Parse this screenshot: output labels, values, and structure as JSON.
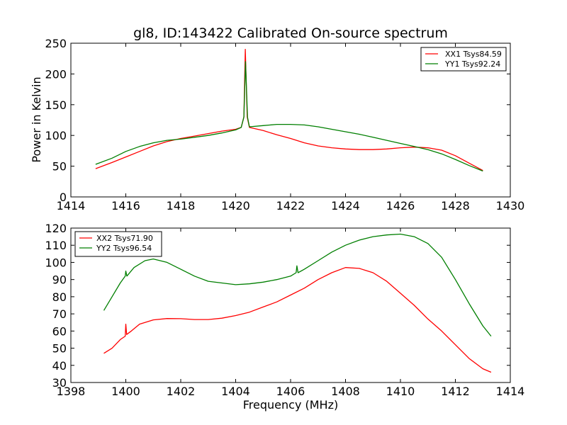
{
  "chart_data": [
    {
      "type": "line",
      "title": "gl8, ID:143422 Calibrated On-source spectrum",
      "xlabel": "",
      "ylabel": "Power in Kelvin",
      "xlim": [
        1414,
        1430
      ],
      "ylim": [
        0,
        250
      ],
      "xticks": [
        "1414",
        "1416",
        "1418",
        "1420",
        "1422",
        "1424",
        "1426",
        "1428",
        "1430"
      ],
      "yticks": [
        "0",
        "50",
        "100",
        "150",
        "200",
        "250"
      ],
      "legend_position": "top-right",
      "series": [
        {
          "name": "XX1 Tsys84.59",
          "color": "#ff0000",
          "points": [
            [
              1414.9,
              46
            ],
            [
              1415.5,
              56
            ],
            [
              1416,
              65
            ],
            [
              1416.5,
              74
            ],
            [
              1417,
              83
            ],
            [
              1417.5,
              90
            ],
            [
              1418,
              95
            ],
            [
              1418.5,
              99
            ],
            [
              1419,
              103
            ],
            [
              1419.5,
              107
            ],
            [
              1420,
              110
            ],
            [
              1420.2,
              113
            ],
            [
              1420.3,
              130
            ],
            [
              1420.35,
              240
            ],
            [
              1420.42,
              130
            ],
            [
              1420.5,
              113
            ],
            [
              1421,
              108
            ],
            [
              1421.5,
              101
            ],
            [
              1422,
              95
            ],
            [
              1422.5,
              88
            ],
            [
              1423,
              83
            ],
            [
              1423.5,
              80
            ],
            [
              1424,
              78
            ],
            [
              1424.5,
              77
            ],
            [
              1425,
              77
            ],
            [
              1425.5,
              78
            ],
            [
              1426,
              80
            ],
            [
              1426.5,
              81
            ],
            [
              1427,
              80
            ],
            [
              1427.5,
              76
            ],
            [
              1428,
              67
            ],
            [
              1428.5,
              55
            ],
            [
              1429,
              43
            ]
          ]
        },
        {
          "name": "YY1 Tsys92.24",
          "color": "#007f00",
          "points": [
            [
              1414.9,
              53
            ],
            [
              1415.5,
              63
            ],
            [
              1416,
              74
            ],
            [
              1416.5,
              82
            ],
            [
              1417,
              88
            ],
            [
              1417.5,
              92
            ],
            [
              1418,
              94
            ],
            [
              1418.5,
              97
            ],
            [
              1419,
              100
            ],
            [
              1419.5,
              104
            ],
            [
              1420,
              109
            ],
            [
              1420.2,
              113
            ],
            [
              1420.3,
              130
            ],
            [
              1420.36,
              220
            ],
            [
              1420.43,
              130
            ],
            [
              1420.5,
              114
            ],
            [
              1421,
              116
            ],
            [
              1421.5,
              118
            ],
            [
              1422,
              118
            ],
            [
              1422.5,
              117
            ],
            [
              1423,
              114
            ],
            [
              1423.5,
              110
            ],
            [
              1424,
              106
            ],
            [
              1424.5,
              102
            ],
            [
              1425,
              97
            ],
            [
              1425.5,
              92
            ],
            [
              1426,
              87
            ],
            [
              1426.5,
              82
            ],
            [
              1427,
              77
            ],
            [
              1427.5,
              70
            ],
            [
              1428,
              61
            ],
            [
              1428.5,
              51
            ],
            [
              1429,
              42
            ]
          ]
        }
      ]
    },
    {
      "type": "line",
      "title": "",
      "xlabel": "Frequency (MHz)",
      "ylabel": "",
      "xlim": [
        1398,
        1414
      ],
      "ylim": [
        30,
        120
      ],
      "xticks": [
        "1398",
        "1400",
        "1402",
        "1404",
        "1406",
        "1408",
        "1410",
        "1412",
        "1414"
      ],
      "yticks": [
        "30",
        "40",
        "50",
        "60",
        "70",
        "80",
        "90",
        "100",
        "110",
        "120"
      ],
      "legend_position": "top-left",
      "series": [
        {
          "name": "XX2 Tsys71.90",
          "color": "#ff0000",
          "points": [
            [
              1399.2,
              47
            ],
            [
              1399.5,
              50
            ],
            [
              1399.8,
              55
            ],
            [
              1399.98,
              57
            ],
            [
              1400.0,
              64
            ],
            [
              1400.03,
              58
            ],
            [
              1400.2,
              60
            ],
            [
              1400.5,
              64
            ],
            [
              1401,
              66.5
            ],
            [
              1401.5,
              67.3
            ],
            [
              1402,
              67.2
            ],
            [
              1402.5,
              66.7
            ],
            [
              1403,
              66.7
            ],
            [
              1403.5,
              67.5
            ],
            [
              1404,
              69
            ],
            [
              1404.5,
              71
            ],
            [
              1405,
              74
            ],
            [
              1405.5,
              77
            ],
            [
              1406,
              81
            ],
            [
              1406.5,
              85
            ],
            [
              1407,
              90
            ],
            [
              1407.5,
              94
            ],
            [
              1408,
              97
            ],
            [
              1408.5,
              96.5
            ],
            [
              1409,
              94
            ],
            [
              1409.5,
              89
            ],
            [
              1410,
              82
            ],
            [
              1410.5,
              75
            ],
            [
              1411,
              67
            ],
            [
              1411.5,
              60
            ],
            [
              1412,
              52
            ],
            [
              1412.5,
              44
            ],
            [
              1413,
              38
            ],
            [
              1413.3,
              36
            ]
          ]
        },
        {
          "name": "YY2 Tsys96.54",
          "color": "#007f00",
          "points": [
            [
              1399.2,
              72
            ],
            [
              1399.5,
              80
            ],
            [
              1399.8,
              88
            ],
            [
              1399.98,
              92
            ],
            [
              1400.0,
              95
            ],
            [
              1400.04,
              92
            ],
            [
              1400.3,
              97
            ],
            [
              1400.7,
              101
            ],
            [
              1401,
              102
            ],
            [
              1401.5,
              100
            ],
            [
              1402,
              96
            ],
            [
              1402.5,
              92
            ],
            [
              1403,
              89
            ],
            [
              1403.5,
              88
            ],
            [
              1404,
              87
            ],
            [
              1404.5,
              87.5
            ],
            [
              1405,
              88.5
            ],
            [
              1405.5,
              90
            ],
            [
              1406,
              92
            ],
            [
              1406.2,
              94
            ],
            [
              1406.23,
              98
            ],
            [
              1406.27,
              94
            ],
            [
              1406.5,
              96
            ],
            [
              1407,
              101
            ],
            [
              1407.5,
              106
            ],
            [
              1408,
              110
            ],
            [
              1408.5,
              113
            ],
            [
              1409,
              115
            ],
            [
              1409.5,
              116
            ],
            [
              1410,
              116.5
            ],
            [
              1410.5,
              115
            ],
            [
              1411,
              111
            ],
            [
              1411.5,
              103
            ],
            [
              1412,
              90
            ],
            [
              1412.5,
              76
            ],
            [
              1413,
              63
            ],
            [
              1413.3,
              57
            ]
          ]
        }
      ]
    }
  ]
}
